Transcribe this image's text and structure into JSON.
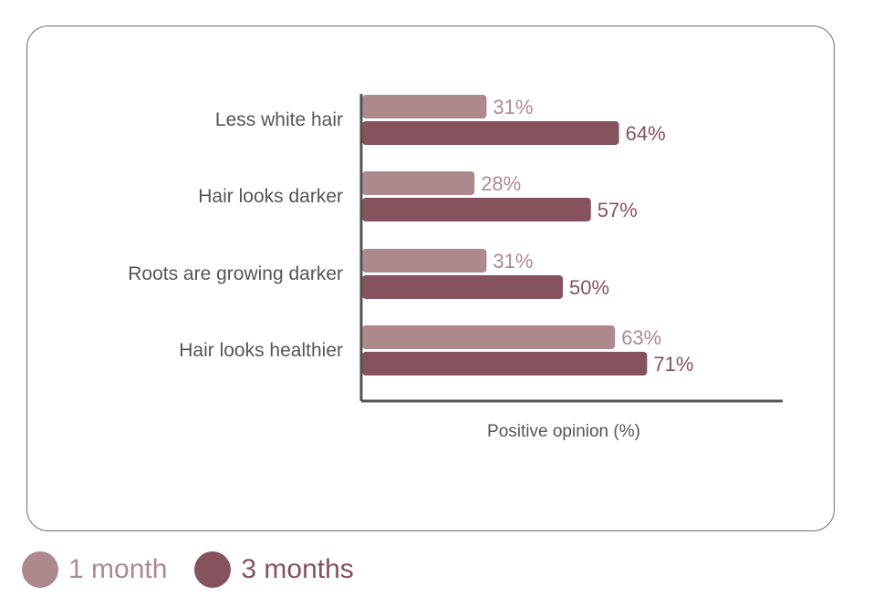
{
  "chart_data": {
    "type": "bar",
    "orientation": "horizontal",
    "categories": [
      "Less white hair",
      "Hair looks darker",
      "Roots are growing darker",
      "Hair looks healthier"
    ],
    "series": [
      {
        "name": "1 month",
        "color": "#ad898e",
        "values": [
          31,
          28,
          31,
          63
        ],
        "labels": [
          "31%",
          "28%",
          "31%",
          "63%"
        ]
      },
      {
        "name": "3 months",
        "color": "#86525e",
        "values": [
          64,
          57,
          50,
          71
        ],
        "labels": [
          "64%",
          "57%",
          "50%",
          "71%"
        ]
      }
    ],
    "xlabel": "Positive opinion (%)",
    "ylabel": "",
    "xlim": [
      0,
      100
    ],
    "grid": false,
    "legend_position": "bottom-left"
  }
}
